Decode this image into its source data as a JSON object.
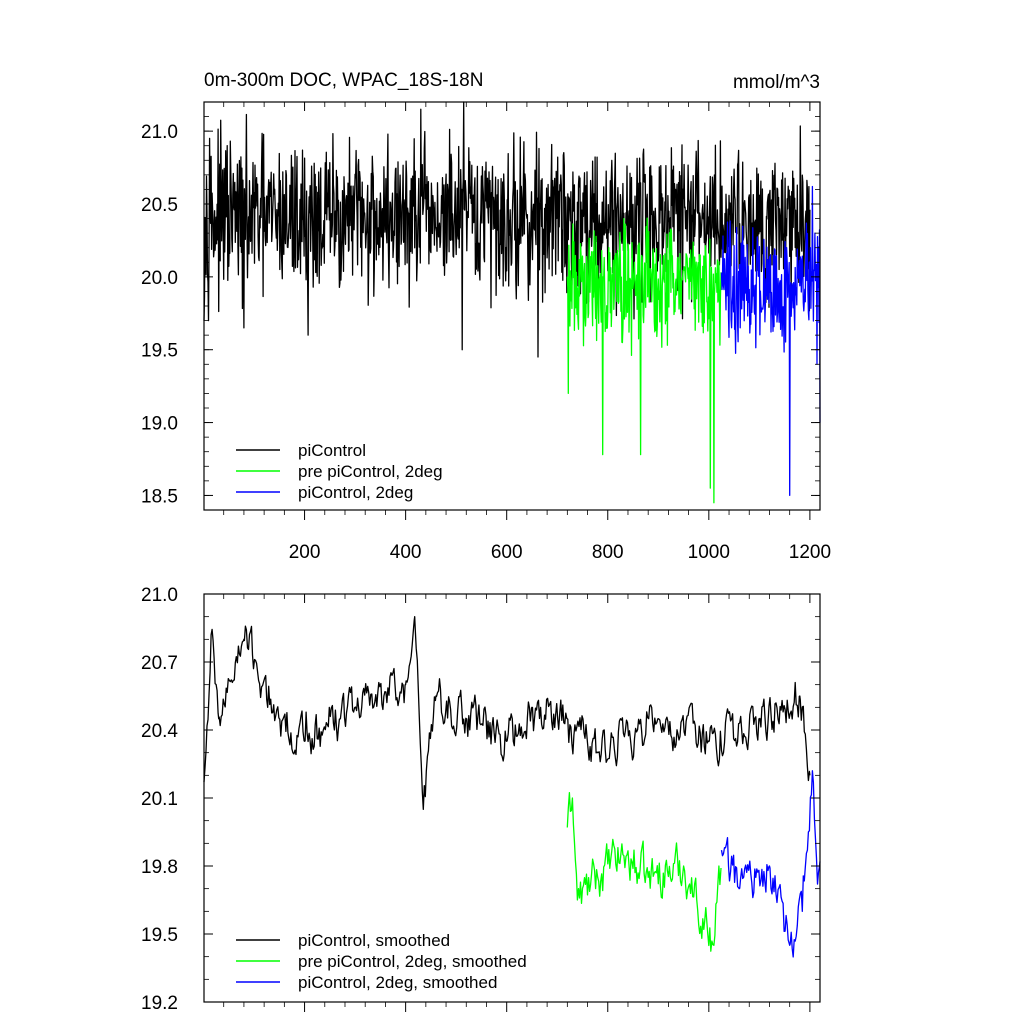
{
  "chart_data": [
    {
      "type": "line",
      "title": "0m-300m DOC, WPAC_18S-18N",
      "units": "mmol/m^3",
      "xlabel": "",
      "ylabel": "",
      "xlim": [
        1,
        1220
      ],
      "ylim": [
        18.4,
        21.2
      ],
      "xticks": [
        200,
        400,
        600,
        800,
        1000,
        1200
      ],
      "xtick_labels": [
        "200",
        "400",
        "600",
        "800",
        "1000",
        "1200"
      ],
      "yticks": [
        18.5,
        19.0,
        19.5,
        20.0,
        20.5,
        21.0
      ],
      "ytick_labels": [
        "18.5",
        "19.0",
        "19.5",
        "20.0",
        "20.5",
        "21.0"
      ],
      "grid": false,
      "legend_position": "bottom-left",
      "series": [
        {
          "name": "piControl",
          "color": "#000000",
          "x_range": [
            1,
            1200
          ],
          "stats": {
            "mean": 20.4,
            "min": 19.45,
            "max": 21.2
          },
          "anchors": [
            {
              "x": 1,
              "y": 19.7
            },
            {
              "x": 12,
              "y": 20.95
            },
            {
              "x": 80,
              "y": 19.65
            },
            {
              "x": 207,
              "y": 19.6
            },
            {
              "x": 430,
              "y": 21.15
            },
            {
              "x": 515,
              "y": 21.2
            },
            {
              "x": 512,
              "y": 19.5
            },
            {
              "x": 662,
              "y": 19.45
            }
          ]
        },
        {
          "name": "pre piControl, 2deg",
          "color": "#00ff00",
          "x_range": [
            720,
            1025
          ],
          "stats": {
            "mean": 19.95,
            "min": 18.45,
            "max": 20.55
          },
          "anchors": [
            {
              "x": 722,
              "y": 19.2
            },
            {
              "x": 790,
              "y": 18.78
            },
            {
              "x": 865,
              "y": 18.78
            },
            {
              "x": 1003,
              "y": 18.55
            },
            {
              "x": 1010,
              "y": 18.45
            }
          ]
        },
        {
          "name": "piControl, 2deg",
          "color": "#0000ff",
          "x_range": [
            1025,
            1220
          ],
          "stats": {
            "mean": 19.95,
            "min": 18.5,
            "max": 20.62
          },
          "anchors": [
            {
              "x": 1160,
              "y": 18.5
            },
            {
              "x": 1205,
              "y": 20.62
            },
            {
              "x": 1220,
              "y": 19.0
            }
          ]
        }
      ]
    },
    {
      "type": "line",
      "title": "",
      "xlabel": "",
      "ylabel": "",
      "xlim": [
        1,
        1220
      ],
      "ylim": [
        19.2,
        21.0
      ],
      "yticks": [
        19.2,
        19.5,
        19.8,
        20.1,
        20.4,
        20.7,
        21.0
      ],
      "ytick_labels": [
        "19.2",
        "19.5",
        "19.8",
        "20.1",
        "20.4",
        "20.7",
        "21.0"
      ],
      "grid": false,
      "legend_position": "bottom-left",
      "series": [
        {
          "name": "piControl, smoothed",
          "color": "#000000",
          "x_range": [
            1,
            1200
          ],
          "anchors": [
            {
              "x": 1,
              "y": 20.17
            },
            {
              "x": 15,
              "y": 20.82
            },
            {
              "x": 30,
              "y": 20.45
            },
            {
              "x": 80,
              "y": 20.8
            },
            {
              "x": 150,
              "y": 20.45
            },
            {
              "x": 200,
              "y": 20.35
            },
            {
              "x": 300,
              "y": 20.5
            },
            {
              "x": 400,
              "y": 20.6
            },
            {
              "x": 418,
              "y": 20.9
            },
            {
              "x": 435,
              "y": 20.05
            },
            {
              "x": 460,
              "y": 20.55
            },
            {
              "x": 520,
              "y": 20.45
            },
            {
              "x": 600,
              "y": 20.35
            },
            {
              "x": 650,
              "y": 20.5
            },
            {
              "x": 720,
              "y": 20.45
            },
            {
              "x": 780,
              "y": 20.3
            },
            {
              "x": 900,
              "y": 20.45
            },
            {
              "x": 1000,
              "y": 20.35
            },
            {
              "x": 1100,
              "y": 20.45
            },
            {
              "x": 1180,
              "y": 20.55
            },
            {
              "x": 1200,
              "y": 20.2
            }
          ]
        },
        {
          "name": "pre piControl, 2deg, smoothed",
          "color": "#00ff00",
          "x_range": [
            720,
            1025
          ],
          "anchors": [
            {
              "x": 720,
              "y": 19.97
            },
            {
              "x": 730,
              "y": 20.1
            },
            {
              "x": 740,
              "y": 19.65
            },
            {
              "x": 780,
              "y": 19.75
            },
            {
              "x": 830,
              "y": 19.85
            },
            {
              "x": 880,
              "y": 19.75
            },
            {
              "x": 950,
              "y": 19.8
            },
            {
              "x": 1010,
              "y": 19.45
            },
            {
              "x": 1020,
              "y": 19.8
            }
          ]
        },
        {
          "name": "piControl, 2deg, smoothed",
          "color": "#0000ff",
          "x_range": [
            1025,
            1220
          ],
          "anchors": [
            {
              "x": 1025,
              "y": 19.87
            },
            {
              "x": 1060,
              "y": 19.7
            },
            {
              "x": 1120,
              "y": 19.8
            },
            {
              "x": 1160,
              "y": 19.45
            },
            {
              "x": 1185,
              "y": 19.6
            },
            {
              "x": 1205,
              "y": 20.22
            },
            {
              "x": 1215,
              "y": 19.72
            },
            {
              "x": 1220,
              "y": 19.82
            }
          ]
        }
      ]
    }
  ]
}
